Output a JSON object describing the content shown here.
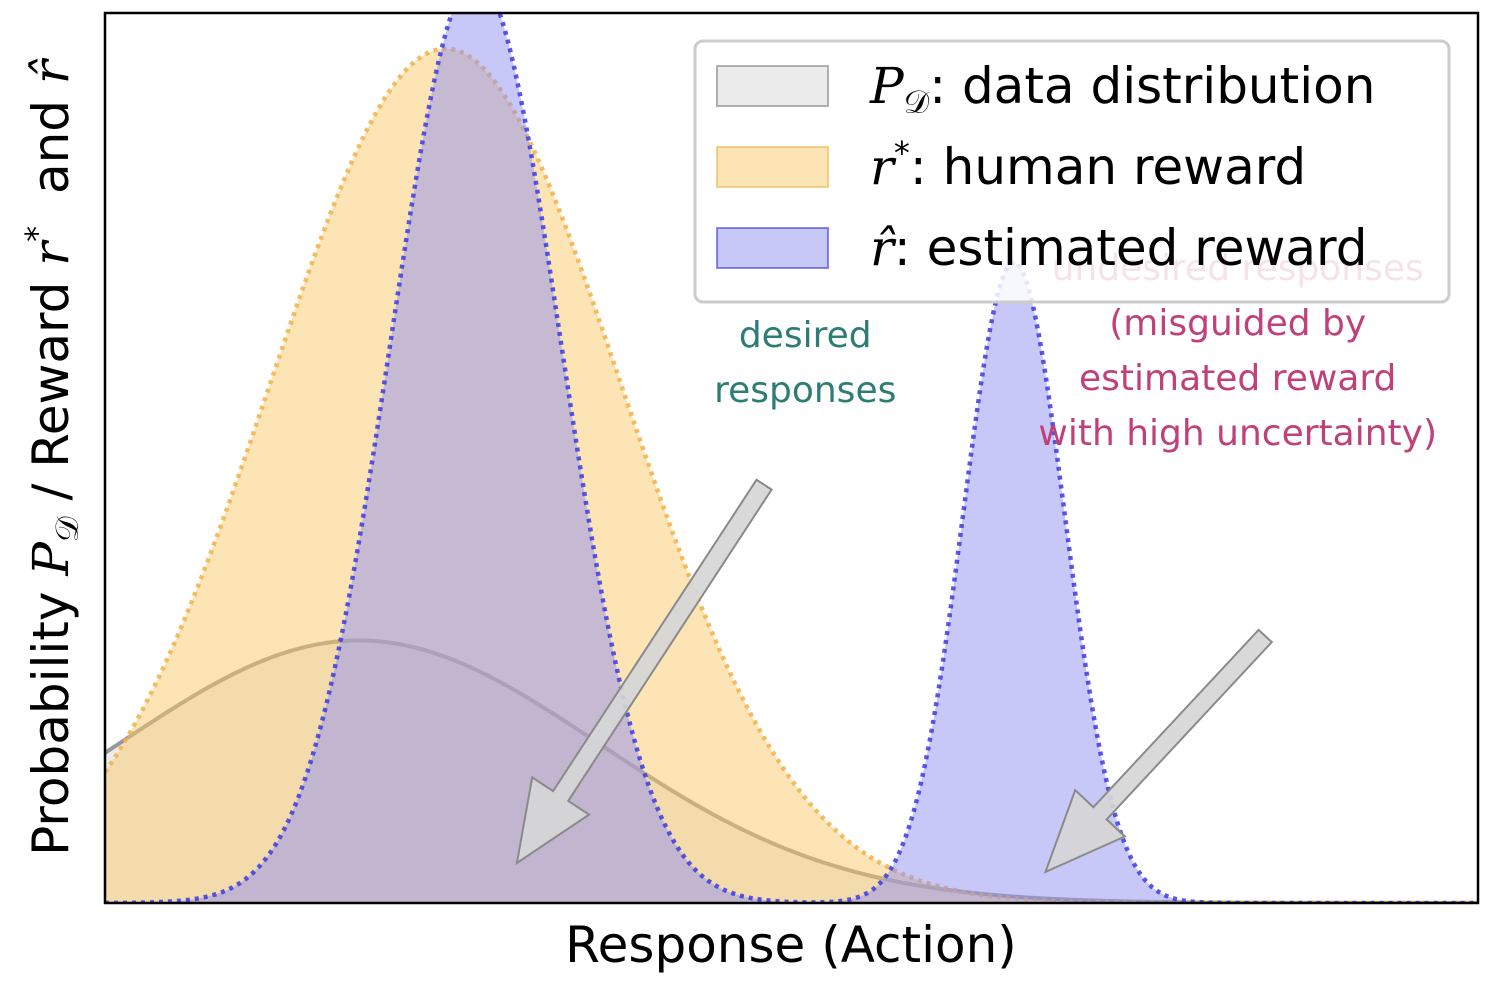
{
  "chart_data": {
    "type": "area",
    "xlabel": "Response (Action)",
    "ylabel": {
      "prefix": "Probability ",
      "p_symbol": "P",
      "p_subscript": "𝒟",
      "middle": " / Reward ",
      "r_symbol": "r",
      "r_superscript": "*",
      "and": "  and ",
      "rhat_symbol": "r̂"
    },
    "xlim": [
      0,
      10
    ],
    "ylim": [
      0,
      1.0
    ],
    "grid": false,
    "legend_position": "top-right",
    "series": [
      {
        "key": "data",
        "symbol": "P",
        "symbol_subscript": "𝒟",
        "name": ": data distribution",
        "fill_color": "#d9d9d9",
        "line_color": "#808080",
        "line_style": "solid",
        "components": [
          {
            "weight": 0.295,
            "mean": 1.85,
            "sd": 1.75
          }
        ]
      },
      {
        "key": "human",
        "symbol": "r",
        "symbol_superscript": "*",
        "name": ": human reward",
        "fill_color": "#f9c96b",
        "line_color": "#f2b24a",
        "line_style": "dotted",
        "components": [
          {
            "weight": 0.96,
            "mean": 2.48,
            "sd": 1.28
          }
        ]
      },
      {
        "key": "estimated",
        "symbol": "r̂",
        "name": ": estimated reward",
        "fill_color": "#8f8ff2",
        "line_color": "#3b3be0",
        "line_style": "dotted",
        "components": [
          {
            "weight": 1.04,
            "mean": 2.7,
            "sd": 0.62
          },
          {
            "weight": 0.72,
            "mean": 6.62,
            "sd": 0.37
          }
        ]
      }
    ],
    "annotations": [
      {
        "key": "desired",
        "lines": [
          "desired",
          "responses"
        ],
        "color": "#2e7d75",
        "text_x": 5.1,
        "text_y": 0.625,
        "arrow_from": [
          4.8,
          0.47
        ],
        "arrow_to": [
          3.0,
          0.045
        ]
      },
      {
        "key": "undesired",
        "lines": [
          "undesired responses",
          "(misguided by",
          "estimated reward",
          "with high uncertainty)"
        ],
        "color": "#c0407a",
        "text_x": 8.25,
        "text_y": 0.7,
        "arrow_from": [
          8.45,
          0.3
        ],
        "arrow_to": [
          6.85,
          0.035
        ]
      }
    ]
  }
}
